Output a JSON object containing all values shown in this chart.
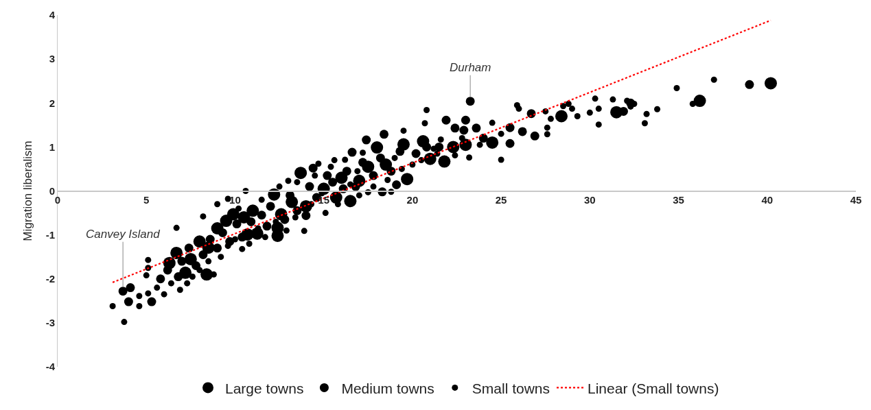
{
  "chart_data": {
    "type": "scatter",
    "ylabel": "Migration liberalism",
    "xlim": [
      0,
      45
    ],
    "xticks": [
      0,
      5,
      10,
      15,
      20,
      25,
      30,
      35,
      40,
      45
    ],
    "ylim": [
      -4,
      4
    ],
    "yticks": [
      -4,
      -3,
      -2,
      -1,
      0,
      1,
      2,
      3,
      4
    ],
    "legend": "bottom",
    "series": [
      {
        "name": "Large towns",
        "color": "#000000",
        "marker": "circle",
        "x": [
          40.2,
          36.2,
          31.5,
          28.4,
          24.5,
          21.8,
          21.0,
          20.6,
          19.7,
          16.5,
          15.7,
          17.0,
          12.4,
          12.4,
          11.25,
          10.7,
          9.5,
          12.6,
          14.0,
          12.2,
          13.7,
          18.0,
          19.5,
          6.7,
          6.3,
          7.2,
          8.4,
          8.5,
          9.9,
          10.5,
          11.0,
          9.0,
          8.0,
          7.5,
          13.2,
          15.0,
          16.0,
          17.5,
          18.5,
          23.0,
          22.3
        ],
        "values": [
          2.45,
          2.05,
          1.79,
          1.7,
          1.1,
          0.67,
          0.73,
          1.13,
          0.27,
          -0.23,
          -0.15,
          0.23,
          -1.02,
          -0.84,
          -0.97,
          -0.99,
          -0.68,
          -0.53,
          -0.35,
          -0.08,
          0.41,
          0.99,
          1.06,
          -1.41,
          -1.64,
          -1.86,
          -1.9,
          -1.29,
          -0.53,
          -0.6,
          -0.45,
          -0.85,
          -1.15,
          -1.55,
          -0.25,
          0.05,
          0.3,
          0.55,
          0.6,
          1.05,
          1.0
        ]
      },
      {
        "name": "Medium towns",
        "color": "#000000",
        "marker": "circle",
        "x": [
          23.26,
          39.0,
          31.9,
          26.9,
          26.7,
          26.2,
          25.5,
          25.5,
          23.6,
          23.0,
          21.9,
          22.4,
          22.9,
          18.4,
          17.4,
          16.6,
          14.4,
          19.1,
          18.3,
          14.0,
          3.68,
          4.1,
          4.0,
          5.3,
          5.8,
          6.2,
          6.8,
          7.0,
          7.4,
          7.8,
          8.2,
          8.6,
          9.0,
          9.3,
          9.7,
          10.1,
          10.4,
          10.9,
          11.5,
          11.8,
          12.0,
          12.8,
          13.1,
          13.5,
          14.2,
          14.6,
          15.2,
          15.5,
          16.1,
          16.3,
          16.8,
          17.2,
          17.8,
          18.2,
          18.8,
          19.3,
          20.2,
          20.8,
          21.5,
          24.0,
          32.3
        ],
        "values": [
          2.04,
          2.42,
          1.81,
          1.25,
          1.76,
          1.35,
          1.08,
          1.44,
          1.43,
          1.61,
          1.61,
          1.43,
          1.38,
          1.29,
          1.16,
          0.88,
          0.52,
          0.14,
          -0.02,
          -0.56,
          -2.28,
          -2.2,
          -2.52,
          -2.52,
          -2.0,
          -1.8,
          -1.95,
          -1.6,
          -1.3,
          -1.7,
          -1.45,
          -1.1,
          -1.3,
          -0.95,
          -1.15,
          -0.75,
          -1.05,
          -0.7,
          -0.55,
          -0.8,
          -0.35,
          -0.65,
          -0.1,
          -0.45,
          0.1,
          -0.15,
          0.35,
          0.2,
          0.05,
          0.45,
          0.1,
          0.65,
          0.35,
          0.75,
          0.45,
          0.9,
          0.85,
          1.0,
          1.0,
          1.2,
          2.0
        ]
      },
      {
        "name": "Small towns",
        "color": "#000000",
        "marker": "circle",
        "x": [
          37.0,
          34.9,
          35.8,
          33.8,
          33.2,
          33.1,
          32.3,
          32.5,
          32.1,
          30.3,
          31.3,
          30.5,
          30.5,
          30.0,
          29.3,
          29.0,
          28.8,
          28.5,
          27.8,
          27.6,
          27.6,
          27.5,
          25.9,
          26.0,
          25.0,
          25.0,
          24.5,
          23.2,
          22.4,
          20.8,
          20.7,
          21.6,
          21.2,
          19.5,
          17.2,
          15.6,
          16.2,
          14.7,
          13.0,
          10.6,
          18.8,
          17.5,
          17.0,
          15.1,
          13.9,
          3.1,
          3.75,
          4.6,
          4.6,
          5.1,
          5.0,
          5.1,
          5.1,
          6.7,
          8.2,
          9.6,
          8.8,
          10.4,
          5.6,
          6.0,
          6.4,
          6.9,
          7.3,
          7.6,
          8.0,
          8.5,
          9.2,
          9.6,
          10.0,
          10.8,
          11.3,
          11.7,
          12.3,
          12.9,
          13.4,
          14.3,
          14.9,
          15.8,
          16.5,
          17.8,
          18.6,
          19.4,
          20.0,
          9.0,
          10.2,
          11.5,
          12.5,
          13.5,
          14.5,
          15.4,
          16.9,
          19.0,
          20.5,
          22.8,
          23.8,
          21.4
        ],
        "values": [
          2.53,
          2.34,
          1.98,
          1.86,
          1.75,
          1.54,
          1.92,
          1.98,
          2.05,
          2.1,
          2.08,
          1.87,
          1.51,
          1.78,
          1.7,
          1.87,
          1.98,
          1.93,
          1.64,
          1.44,
          1.29,
          1.81,
          1.95,
          1.87,
          1.3,
          0.71,
          1.55,
          0.76,
          0.81,
          1.84,
          1.54,
          1.17,
          0.96,
          1.37,
          0.87,
          0.7,
          0.71,
          0.62,
          0.23,
          0.0,
          -0.02,
          -0.03,
          -0.1,
          -0.5,
          -0.91,
          -2.62,
          -2.98,
          -2.39,
          -2.62,
          -2.33,
          -1.92,
          -1.75,
          -1.57,
          -0.84,
          -0.58,
          -0.18,
          -1.9,
          -1.32,
          -2.2,
          -2.35,
          -2.1,
          -2.25,
          -2.1,
          -1.95,
          -1.8,
          -1.6,
          -1.5,
          -1.25,
          -1.1,
          -1.2,
          -0.85,
          -1.05,
          -0.7,
          -0.9,
          -0.6,
          -0.3,
          -0.05,
          -0.3,
          0.15,
          0.1,
          0.25,
          0.5,
          0.6,
          -0.3,
          -0.4,
          -0.2,
          0.1,
          0.2,
          0.35,
          0.55,
          0.45,
          0.75,
          0.7,
          1.2,
          1.05,
          0.85
        ]
      },
      {
        "name": "Linear (Small towns)",
        "type": "line",
        "marker": "none",
        "line_style": "dotted",
        "color": "#ff0000",
        "x": [
          3.1,
          40.2
        ],
        "values": [
          -2.08,
          3.88
        ]
      }
    ],
    "annotations": [
      {
        "text": "Durham",
        "x": 23.26,
        "y": 2.04
      },
      {
        "text": "Canvey Island",
        "x": 3.68,
        "y": -2.28
      }
    ]
  }
}
